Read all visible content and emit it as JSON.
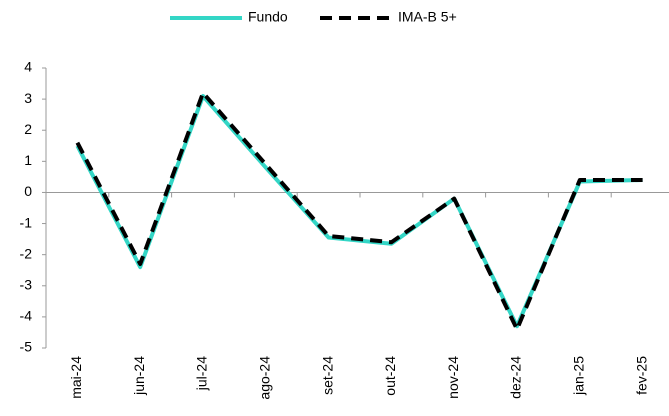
{
  "chart_data": {
    "type": "line",
    "categories": [
      "mai-24",
      "jun-24",
      "jul-24",
      "ago-24",
      "set-24",
      "out-24",
      "nov-24",
      "dez-24",
      "jan-25",
      "fev-25"
    ],
    "series": [
      {
        "name": "Fundo",
        "color": "#33d6c6",
        "values": [
          1.5,
          -2.4,
          3.1,
          0.8,
          -1.45,
          -1.65,
          -0.2,
          -4.3,
          0.35,
          0.4
        ]
      },
      {
        "name": "IMA-B 5+",
        "color": "#000000",
        "dashed": true,
        "values": [
          1.6,
          -2.3,
          3.2,
          0.9,
          -1.4,
          -1.6,
          -0.2,
          -4.4,
          0.4,
          0.4
        ]
      }
    ],
    "ylim": [
      -5,
      4
    ],
    "yticks": [
      -5,
      -4,
      -3,
      -2,
      -1,
      0,
      1,
      2,
      3,
      4
    ],
    "grid": false,
    "legend": "top"
  }
}
